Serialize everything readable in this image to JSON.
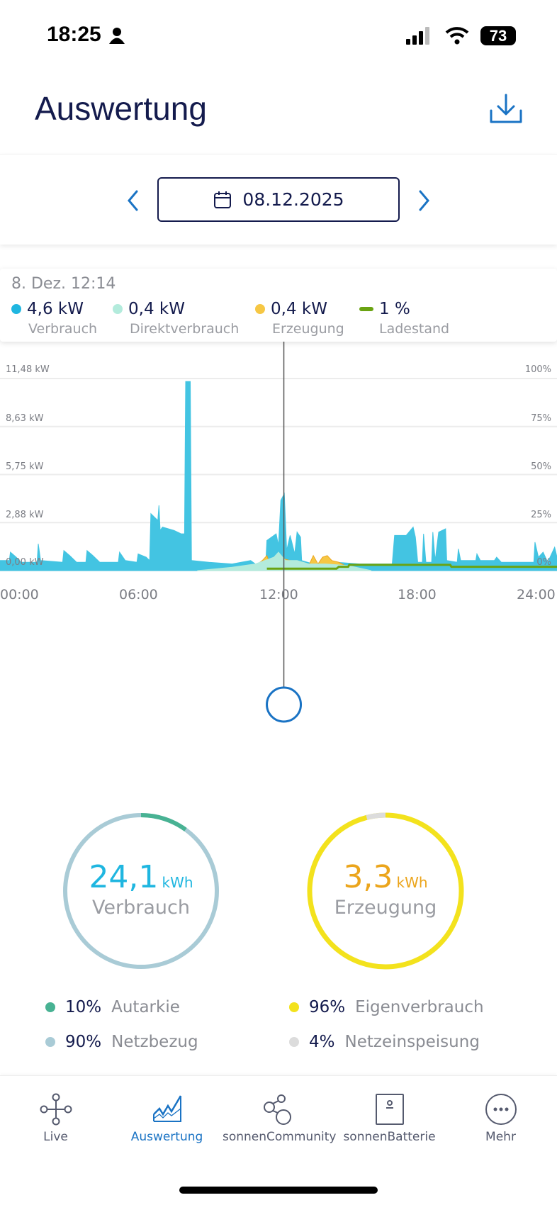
{
  "status_bar": {
    "time": "18:25",
    "battery": "73"
  },
  "header": {
    "title": "Auswertung",
    "download_icon": "download-icon"
  },
  "date_nav": {
    "date": "08.12.2025"
  },
  "tooltip": {
    "time": "8. Dez. 12:14",
    "items": [
      {
        "value": "4,6 kW",
        "label": "Verbrauch",
        "color": "#1fb6e0"
      },
      {
        "value": "0,4 kW",
        "label": "Direktverbrauch",
        "color": "#b3ebdc"
      },
      {
        "value": "0,4 kW",
        "label": "Erzeugung",
        "color": "#f6c744"
      },
      {
        "value": "1 %",
        "label": "Ladestand",
        "color": "#6aa312"
      }
    ]
  },
  "chart_data": {
    "type": "area",
    "x_ticks": [
      "00:00",
      "06:00",
      "12:00",
      "18:00",
      "24:00"
    ],
    "y_left_ticks": [
      "0,00 kW",
      "2,88 kW",
      "5,75 kW",
      "8,63 kW",
      "11,48 kW"
    ],
    "y_right_ticks": [
      "0%",
      "25%",
      "50%",
      "75%",
      "100%"
    ],
    "xlim": [
      0,
      24
    ],
    "ylim_left": [
      0,
      11.48
    ],
    "ylim_right": [
      0,
      100
    ],
    "grid": true,
    "cursor_hour": 12.23,
    "series": [
      {
        "name": "Verbrauch",
        "color": "#43c4e2",
        "unit": "kW",
        "points": [
          [
            0,
            0.6
          ],
          [
            0.4,
            0.6
          ],
          [
            0.45,
            1.1
          ],
          [
            0.7,
            0.8
          ],
          [
            0.9,
            0.5
          ],
          [
            1.6,
            0.5
          ],
          [
            1.65,
            1.6
          ],
          [
            1.75,
            0.6
          ],
          [
            2.7,
            0.5
          ],
          [
            2.75,
            1.2
          ],
          [
            3.0,
            0.9
          ],
          [
            3.3,
            0.5
          ],
          [
            3.7,
            0.5
          ],
          [
            3.75,
            1.2
          ],
          [
            4.0,
            0.9
          ],
          [
            4.3,
            0.5
          ],
          [
            5.1,
            0.5
          ],
          [
            5.15,
            1.1
          ],
          [
            5.4,
            0.6
          ],
          [
            5.9,
            0.5
          ],
          [
            5.95,
            1.0
          ],
          [
            6.3,
            0.8
          ],
          [
            6.45,
            0.6
          ],
          [
            6.5,
            3.4
          ],
          [
            6.8,
            3.0
          ],
          [
            6.85,
            3.9
          ],
          [
            6.9,
            2.4
          ],
          [
            7.0,
            2.6
          ],
          [
            7.5,
            2.4
          ],
          [
            7.8,
            2.2
          ],
          [
            7.95,
            2.2
          ],
          [
            8.0,
            11.3
          ],
          [
            8.2,
            11.3
          ],
          [
            8.25,
            0.6
          ],
          [
            9.0,
            0.5
          ],
          [
            10,
            0.4
          ],
          [
            10.8,
            0.6
          ],
          [
            11.0,
            0.4
          ],
          [
            11.45,
            0.4
          ],
          [
            11.5,
            1.8
          ],
          [
            11.9,
            2.2
          ],
          [
            12.0,
            1.5
          ],
          [
            12.1,
            4.2
          ],
          [
            12.25,
            4.6
          ],
          [
            12.35,
            1.2
          ],
          [
            12.5,
            2.1
          ],
          [
            12.7,
            1.0
          ],
          [
            12.8,
            2.3
          ],
          [
            12.95,
            2.0
          ],
          [
            13.0,
            0.6
          ],
          [
            13.5,
            0.4
          ],
          [
            14.5,
            0.5
          ],
          [
            15.5,
            0.4
          ],
          [
            16.9,
            0.4
          ],
          [
            17.0,
            2.1
          ],
          [
            17.5,
            2.1
          ],
          [
            17.8,
            2.6
          ],
          [
            17.9,
            2.0
          ],
          [
            18.0,
            0.5
          ],
          [
            18.2,
            0.5
          ],
          [
            18.25,
            2.2
          ],
          [
            18.35,
            0.5
          ],
          [
            18.6,
            0.5
          ],
          [
            18.65,
            2.3
          ],
          [
            18.75,
            0.6
          ],
          [
            18.9,
            2.3
          ],
          [
            19.2,
            2.5
          ],
          [
            19.25,
            0.6
          ],
          [
            19.7,
            0.5
          ],
          [
            19.75,
            1.3
          ],
          [
            19.85,
            0.6
          ],
          [
            20.5,
            0.6
          ],
          [
            20.55,
            1.0
          ],
          [
            20.7,
            0.6
          ],
          [
            21.3,
            0.6
          ],
          [
            21.4,
            0.8
          ],
          [
            21.6,
            0.5
          ],
          [
            23.0,
            0.5
          ],
          [
            23.05,
            1.7
          ],
          [
            23.2,
            0.8
          ],
          [
            23.4,
            1.1
          ],
          [
            23.6,
            0.5
          ],
          [
            23.9,
            1.4
          ],
          [
            24,
            0.8
          ]
        ]
      },
      {
        "name": "Erzeugung",
        "color": "#f6c744",
        "unit": "kW",
        "points": [
          [
            10.5,
            0
          ],
          [
            11.0,
            0.3
          ],
          [
            11.3,
            0.6
          ],
          [
            11.5,
            0.9
          ],
          [
            11.6,
            0.5
          ],
          [
            12,
            0.8
          ],
          [
            12.5,
            0.6
          ],
          [
            13,
            0.5
          ],
          [
            13.3,
            0.3
          ],
          [
            13.5,
            0.9
          ],
          [
            13.7,
            0.4
          ],
          [
            13.9,
            0.8
          ],
          [
            14.1,
            0.9
          ],
          [
            14.3,
            0.6
          ],
          [
            14.6,
            0.5
          ],
          [
            15,
            0.2
          ],
          [
            15.5,
            0
          ]
        ]
      },
      {
        "name": "Direktverbrauch",
        "color": "#b3ebdc",
        "unit": "kW",
        "points": [
          [
            8.5,
            0
          ],
          [
            10,
            0.2
          ],
          [
            11,
            0.4
          ],
          [
            11.8,
            0.8
          ],
          [
            12,
            1.1
          ],
          [
            12.3,
            0.6
          ],
          [
            12.8,
            0.6
          ],
          [
            13.3,
            0.4
          ],
          [
            14,
            0.4
          ],
          [
            15,
            0.3
          ],
          [
            16,
            0
          ]
        ]
      },
      {
        "name": "Ladestand",
        "color": "#6aa312",
        "unit": "%",
        "points": [
          [
            11.5,
            1
          ],
          [
            14.5,
            1
          ],
          [
            14.6,
            2
          ],
          [
            15.0,
            2
          ],
          [
            15.05,
            3
          ],
          [
            19.4,
            3
          ],
          [
            19.45,
            2
          ],
          [
            24,
            2
          ]
        ]
      }
    ]
  },
  "summary": {
    "consumption": {
      "value": "24,1",
      "unit": "kWh",
      "label": "Verbrauch",
      "autarky_fraction": 0.1
    },
    "generation": {
      "value": "3,3",
      "unit": "kWh",
      "label": "Erzeugung",
      "feed_in_fraction": 0.04
    },
    "stats": [
      {
        "pct": "10%",
        "label": "Autarkie",
        "color": "#48b293"
      },
      {
        "pct": "96%",
        "label": "Eigenverbrauch",
        "color": "#f3e21d"
      },
      {
        "pct": "90%",
        "label": "Netzbezug",
        "color": "#a9cbd6"
      },
      {
        "pct": "4%",
        "label": "Netzeinspeisung",
        "color": "#dcdcdc"
      }
    ]
  },
  "nav": {
    "items": [
      {
        "label": "Live",
        "icon": "network-icon"
      },
      {
        "label": "Auswertung",
        "icon": "chart-icon",
        "active": true
      },
      {
        "label": "sonnenCommunity",
        "icon": "community-icon"
      },
      {
        "label": "sonnenBatterie",
        "icon": "battery-device-icon"
      },
      {
        "label": "Mehr",
        "icon": "more-icon"
      }
    ]
  }
}
